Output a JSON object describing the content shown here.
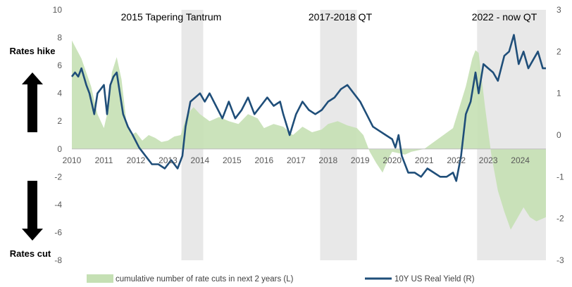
{
  "chart_data": {
    "type": "line",
    "x_range": [
      2010,
      2024.8
    ],
    "ylim_left": [
      -8,
      10
    ],
    "ylim_right": [
      -3,
      3
    ],
    "left_ticks": [
      "-8",
      "-6",
      "-4",
      "-2",
      "0",
      "2",
      "4",
      "6",
      "8",
      "10"
    ],
    "right_ticks": [
      "-3",
      "-2",
      "-1",
      "0",
      "1",
      "2",
      "3"
    ],
    "x_ticks": [
      "2010",
      "2011",
      "2012",
      "2013",
      "2014",
      "2015",
      "2016",
      "2017",
      "2018",
      "2019",
      "2020",
      "2021",
      "2022",
      "2023",
      "2024"
    ],
    "grid": false,
    "legend_position": "bottom",
    "series": [
      {
        "name": "cumulative number of rate cuts in next 2 years (L)",
        "axis": "left",
        "kind": "area",
        "color": "#c5e0b4",
        "x": [
          2010,
          2010.3,
          2010.6,
          2010.8,
          2011.0,
          2011.15,
          2011.25,
          2011.4,
          2011.55,
          2011.7,
          2011.85,
          2012.0,
          2012.2,
          2012.4,
          2012.6,
          2012.8,
          2013.0,
          2013.2,
          2013.4,
          2013.6,
          2013.8,
          2014.0,
          2014.3,
          2014.6,
          2014.9,
          2015.2,
          2015.5,
          2015.8,
          2016.0,
          2016.3,
          2016.6,
          2016.9,
          2017.2,
          2017.5,
          2017.8,
          2018.0,
          2018.3,
          2018.6,
          2018.9,
          2019.1,
          2019.3,
          2019.5,
          2019.7,
          2019.9,
          2020.0,
          2020.2,
          2020.4,
          2020.6,
          2020.8,
          2021.0,
          2021.3,
          2021.6,
          2021.9,
          2022.1,
          2022.3,
          2022.5,
          2022.6,
          2022.7,
          2022.9,
          2023.1,
          2023.3,
          2023.5,
          2023.7,
          2023.9,
          2024.1,
          2024.3,
          2024.5,
          2024.8
        ],
        "y": [
          7.8,
          6.5,
          4.5,
          2.5,
          1.5,
          3.0,
          5.5,
          6.6,
          5.0,
          2.0,
          1.0,
          1.2,
          0.6,
          1.0,
          0.8,
          0.5,
          0.6,
          0.9,
          1.0,
          2.5,
          3.0,
          2.5,
          2.0,
          2.3,
          2.0,
          1.8,
          2.5,
          2.2,
          1.5,
          1.8,
          1.6,
          1.0,
          1.6,
          1.2,
          1.4,
          1.8,
          2.0,
          1.7,
          1.5,
          1.0,
          -0.2,
          -1.0,
          -1.7,
          -0.6,
          -0.2,
          -0.3,
          -0.4,
          -0.2,
          -0.1,
          0.0,
          0.5,
          1.0,
          1.5,
          3.0,
          4.5,
          6.5,
          7.1,
          6.9,
          3.0,
          -0.5,
          -3.0,
          -4.5,
          -5.8,
          -5.0,
          -4.2,
          -4.9,
          -5.2,
          -4.9
        ]
      },
      {
        "name": "10Y US Real Yield (R)",
        "axis": "right",
        "kind": "line",
        "color": "#1f4e79",
        "x": [
          2010,
          2010.1,
          2010.2,
          2010.3,
          2010.45,
          2010.55,
          2010.7,
          2010.8,
          2011.0,
          2011.1,
          2011.2,
          2011.3,
          2011.4,
          2011.5,
          2011.6,
          2011.75,
          2011.9,
          2012.1,
          2012.3,
          2012.5,
          2012.7,
          2012.9,
          2013.1,
          2013.3,
          2013.45,
          2013.55,
          2013.7,
          2013.85,
          2014.0,
          2014.15,
          2014.3,
          2014.5,
          2014.7,
          2014.9,
          2015.1,
          2015.3,
          2015.5,
          2015.7,
          2015.9,
          2016.1,
          2016.3,
          2016.5,
          2016.6,
          2016.8,
          2017.0,
          2017.2,
          2017.4,
          2017.6,
          2017.8,
          2018.0,
          2018.2,
          2018.4,
          2018.6,
          2018.8,
          2019.0,
          2019.2,
          2019.4,
          2019.6,
          2019.8,
          2020.0,
          2020.1,
          2020.2,
          2020.3,
          2020.5,
          2020.7,
          2020.9,
          2021.1,
          2021.3,
          2021.5,
          2021.7,
          2021.9,
          2022.0,
          2022.15,
          2022.3,
          2022.45,
          2022.6,
          2022.7,
          2022.85,
          2023.0,
          2023.15,
          2023.3,
          2023.5,
          2023.65,
          2023.8,
          2023.95,
          2024.1,
          2024.25,
          2024.4,
          2024.55,
          2024.7,
          2024.8
        ],
        "y": [
          1.4,
          1.5,
          1.4,
          1.6,
          1.2,
          1.0,
          0.5,
          1.0,
          1.2,
          0.5,
          1.2,
          1.4,
          1.5,
          1.0,
          0.5,
          0.2,
          0.0,
          -0.3,
          -0.5,
          -0.7,
          -0.7,
          -0.8,
          -0.6,
          -0.8,
          -0.5,
          0.2,
          0.8,
          0.9,
          1.0,
          0.8,
          1.0,
          0.7,
          0.4,
          0.8,
          0.4,
          0.6,
          0.9,
          0.5,
          0.7,
          0.9,
          0.7,
          0.8,
          0.5,
          0.0,
          0.5,
          0.8,
          0.6,
          0.5,
          0.6,
          0.8,
          0.9,
          1.1,
          1.2,
          1.0,
          0.8,
          0.5,
          0.2,
          0.1,
          0.0,
          -0.1,
          -0.3,
          0.0,
          -0.5,
          -0.9,
          -0.9,
          -1.0,
          -0.8,
          -0.9,
          -1.0,
          -1.0,
          -0.9,
          -1.1,
          -0.5,
          0.5,
          0.8,
          1.5,
          1.0,
          1.7,
          1.6,
          1.5,
          1.3,
          1.9,
          2.0,
          2.4,
          1.7,
          2.0,
          1.6,
          1.8,
          2.0,
          1.6,
          1.6
        ]
      }
    ],
    "shaded_periods": [
      {
        "label": "2015 Tapering Tantrum",
        "x0": 2013.42,
        "x1": 2014.1
      },
      {
        "label": "2017-2018 QT",
        "x0": 2017.75,
        "x1": 2018.9
      },
      {
        "label": "2022 - now QT",
        "x0": 2022.65,
        "x1": 2024.8
      }
    ],
    "side_labels": {
      "top": "Rates hike",
      "bottom": "Rates cut"
    },
    "colors": {
      "shading": "#e8e8e8",
      "area": "#c5e0b4",
      "line": "#1f4e79",
      "axis": "#bfbfbf",
      "arrow": "#000000"
    }
  }
}
